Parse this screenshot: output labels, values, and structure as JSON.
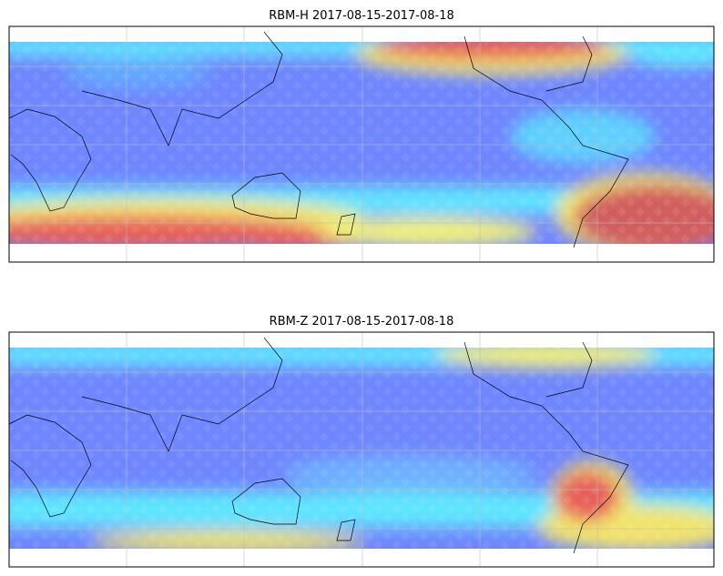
{
  "panels": [
    {
      "title": "RBM-H 2017-08-15-2017-08-18"
    },
    {
      "title": "RBM-Z 2017-08-15-2017-08-18"
    }
  ]
}
